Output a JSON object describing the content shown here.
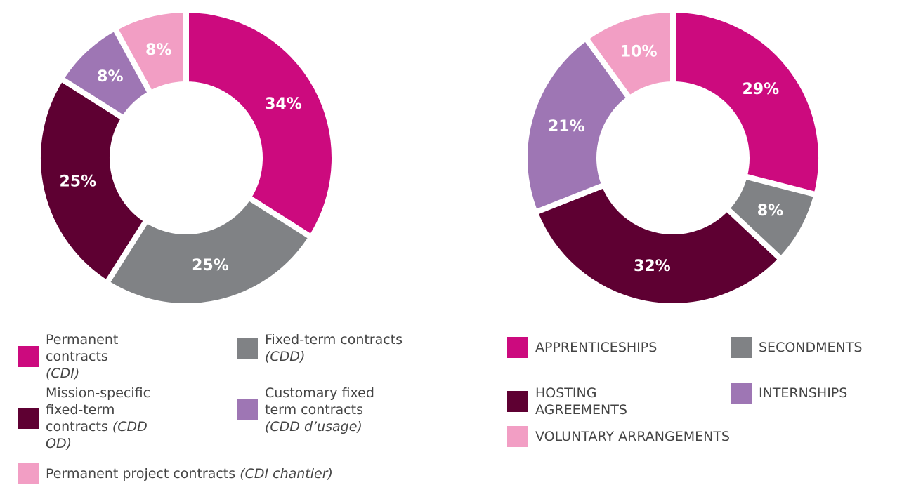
{
  "chart_data": [
    {
      "type": "pie",
      "categories": [
        "Permanent contracts (CDI)",
        "Fixed-term contracts (CDD)",
        "Mission-specific fixed-term contracts (CDD OD)",
        "Customary fixed term contracts (CDD d’usage)",
        "Permanent project contracts (CDI chantier)"
      ],
      "values": [
        34,
        25,
        25,
        8,
        8
      ],
      "value_labels": [
        "34%",
        "25%",
        "25%",
        "8%",
        "8%"
      ],
      "colors": [
        "#cc0a7e",
        "#808285",
        "#5e0032",
        "#9e76b4",
        "#f29ec4"
      ]
    },
    {
      "type": "pie",
      "categories": [
        "APPRENTICESHIPS",
        "SECONDMENTS",
        "HOSTING AGREEMENTS",
        "INTERNSHIPS",
        "VOLUNTARY ARRANGEMENTS"
      ],
      "values": [
        29,
        8,
        32,
        21,
        10
      ],
      "value_labels": [
        "29%",
        "8%",
        "32%",
        "21%",
        "10%"
      ],
      "colors": [
        "#cc0a7e",
        "#808285",
        "#5e0032",
        "#9e76b4",
        "#f29ec4"
      ]
    }
  ]
}
